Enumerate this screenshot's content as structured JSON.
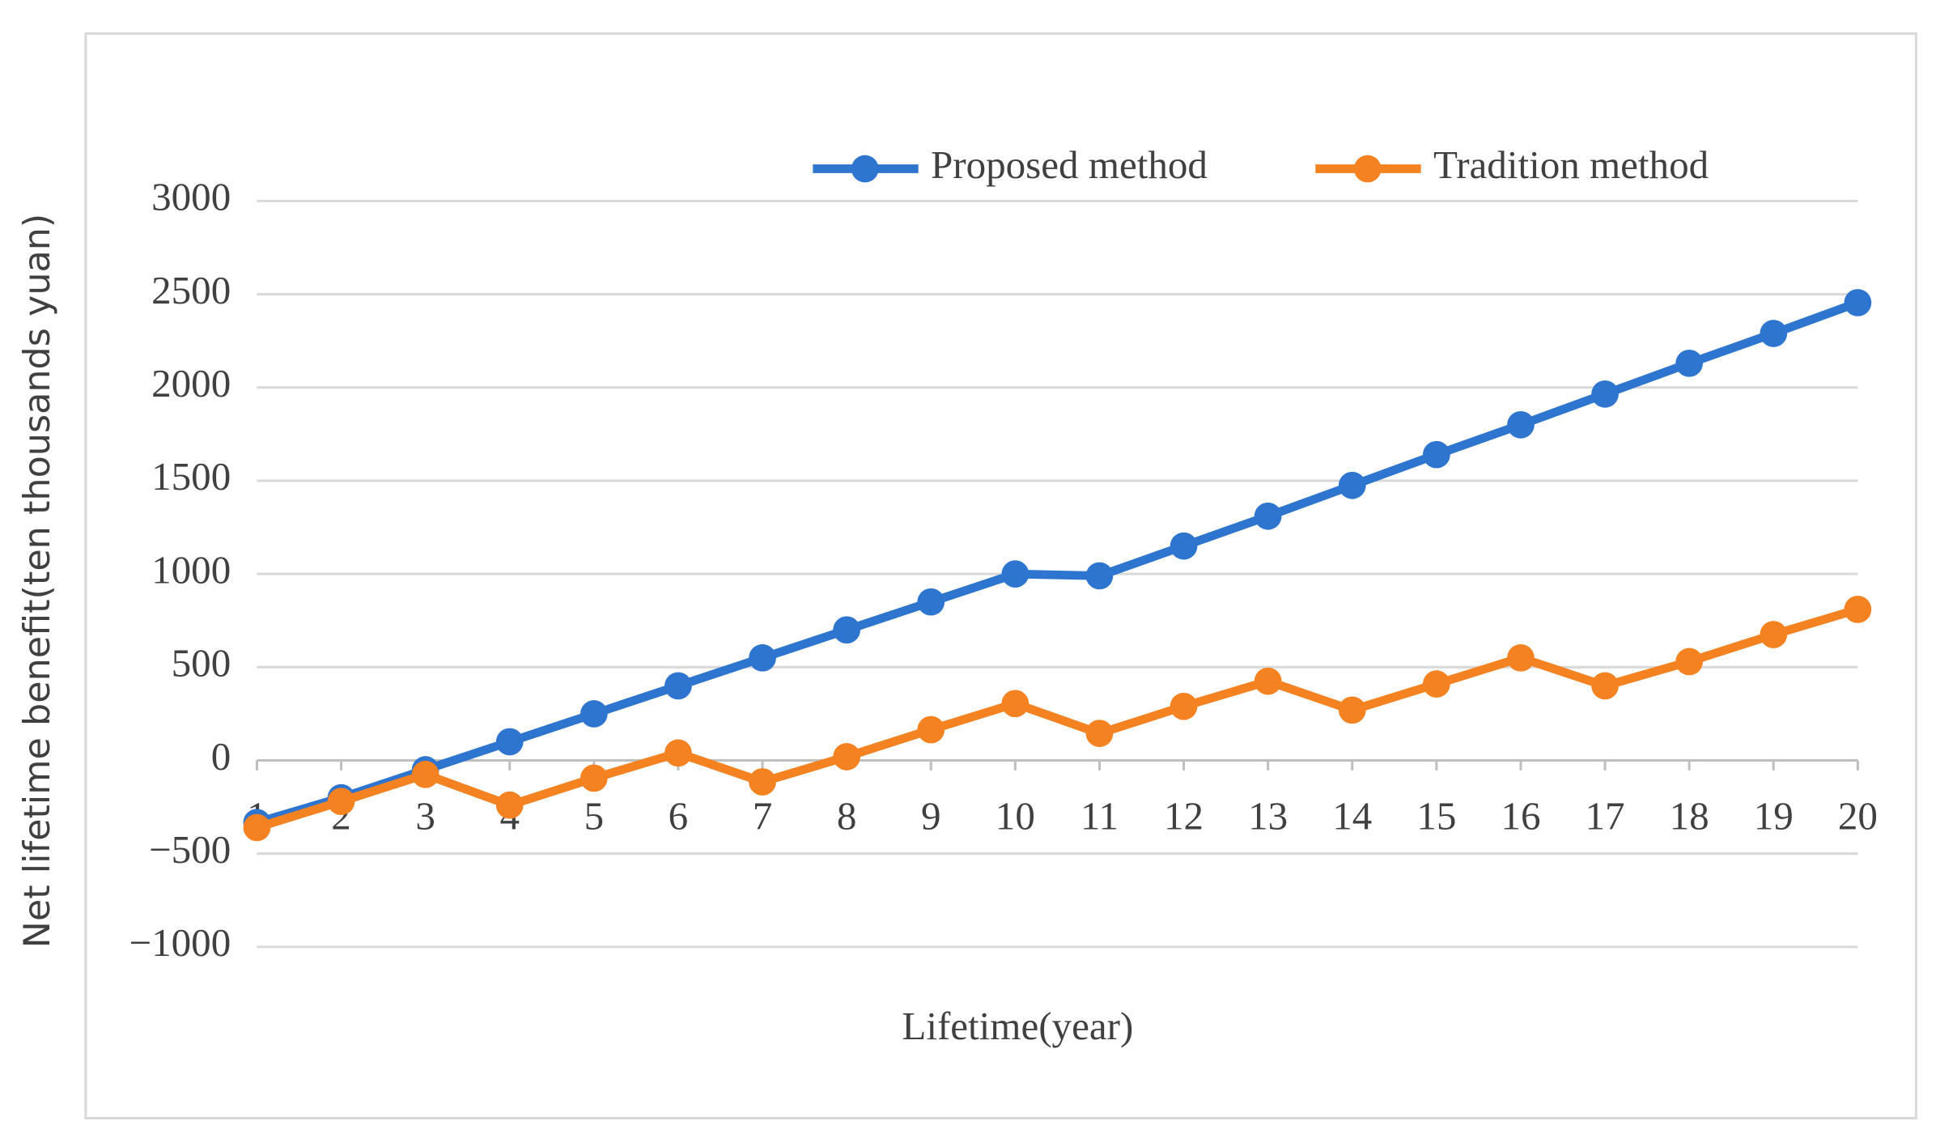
{
  "chart_data": {
    "type": "line",
    "y_label": "Net lifetime benefit(ten thousands yuan)",
    "x_label": "Lifetime(year)",
    "categories": [
      "1",
      "2",
      "3",
      "4",
      "5",
      "6",
      "7",
      "8",
      "9",
      "10",
      "11",
      "12",
      "13",
      "14",
      "15",
      "16",
      "17",
      "18",
      "19",
      "20"
    ],
    "series": [
      {
        "name": "Proposed method",
        "color": "#2e75d0",
        "values": [
          -333,
          -200,
          -50,
          100,
          250,
          400,
          550,
          700,
          850,
          1000,
          990,
          1150,
          1310,
          1475,
          1640,
          1800,
          1965,
          2130,
          2290,
          2455
        ]
      },
      {
        "name": "Tradition method",
        "color": "#f58220",
        "values": [
          -360,
          -220,
          -75,
          -240,
          -95,
          40,
          -115,
          20,
          165,
          305,
          145,
          290,
          425,
          270,
          410,
          550,
          400,
          530,
          675,
          810
        ]
      }
    ],
    "ylim": [
      -1000,
      3000
    ],
    "yticks": [
      {
        "value": -1000,
        "label": "−1000"
      },
      {
        "value": -500,
        "label": "−500"
      },
      0,
      500,
      1000,
      1500,
      2000,
      2500,
      3000
    ],
    "grid": true,
    "legend": "top"
  }
}
